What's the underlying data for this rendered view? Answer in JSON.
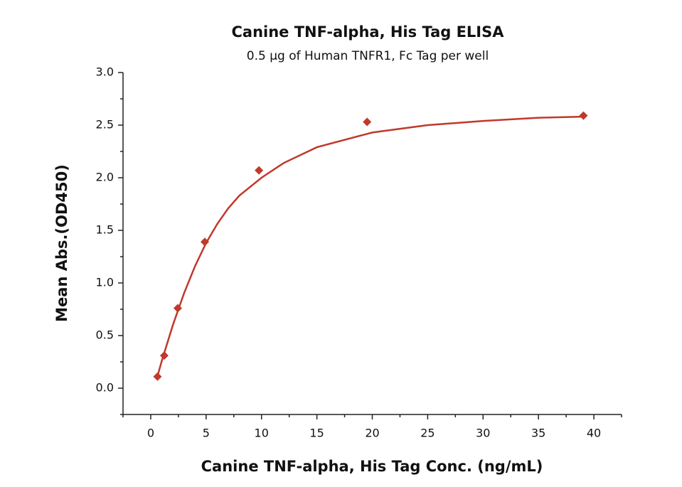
{
  "chart_data": {
    "type": "scatter",
    "title": "Canine TNF-alpha, His Tag ELISA",
    "subtitle": "0.5 μg of Human TNFR1, Fc Tag per well",
    "x_label": "Canine TNF-alpha, His Tag Conc. (ng/mL)",
    "y_label": "Mean Abs.(OD450)",
    "color": "#c0392b",
    "x": [
      0.61,
      1.22,
      2.44,
      4.88,
      9.77,
      19.53,
      39.06
    ],
    "values": [
      0.11,
      0.31,
      0.76,
      1.39,
      2.07,
      2.53,
      2.59
    ],
    "curve": {
      "x": [
        0.6,
        1,
        2,
        3,
        4,
        5,
        6,
        7,
        8,
        10,
        12,
        15,
        20,
        25,
        30,
        35,
        39
      ],
      "values": [
        0.11,
        0.26,
        0.6,
        0.9,
        1.16,
        1.38,
        1.56,
        1.71,
        1.83,
        2.0,
        2.14,
        2.29,
        2.43,
        2.5,
        2.54,
        2.57,
        2.58
      ]
    },
    "xlim": [
      -2.5,
      42.5
    ],
    "xticks": [
      0,
      5,
      10,
      15,
      20,
      25,
      30,
      35,
      40
    ],
    "ylim": [
      -0.25,
      3.0
    ],
    "yticks": [
      {
        "value": 0,
        "label": "0.0"
      },
      0.5,
      {
        "value": 1,
        "label": "1.0"
      },
      1.5,
      {
        "value": 2,
        "label": "2.0"
      },
      2.5,
      {
        "value": 3,
        "label": "3.0"
      }
    ]
  }
}
